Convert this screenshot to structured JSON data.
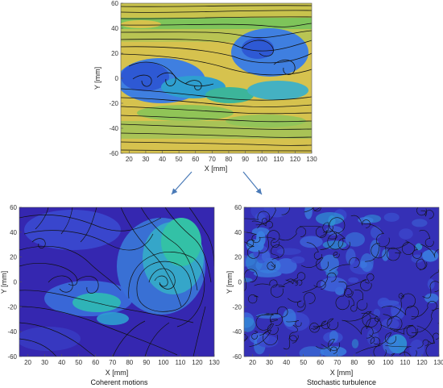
{
  "colors": {
    "arrow": "#4a7ab7",
    "streamline": "#111111",
    "top_field_low": "#3b4fc4",
    "top_field_mid": "#3aa9a0",
    "top_field_high": "#e2c04a",
    "bottom_field_low": "#3b2fb3",
    "bottom_field_high": "#35b79a"
  },
  "chart_data": [
    {
      "type": "heatmap",
      "title": "",
      "caption": "",
      "xlabel": "X [mm]",
      "ylabel": "Y [mm]",
      "xlim": [
        15,
        130
      ],
      "ylim": [
        -60,
        60
      ],
      "xticks": [
        20,
        30,
        40,
        50,
        60,
        70,
        80,
        90,
        100,
        110,
        120,
        130
      ],
      "yticks": [
        -60,
        -40,
        -20,
        0,
        20,
        40,
        60
      ],
      "overlay": "streamlines with arrows",
      "colormap": "parula"
    },
    {
      "type": "heatmap",
      "title": "",
      "caption": "Coherent motions",
      "xlabel": "X [mm]",
      "ylabel": "Y [mm]",
      "xlim": [
        15,
        130
      ],
      "ylim": [
        -60,
        60
      ],
      "xticks": [
        20,
        30,
        40,
        50,
        60,
        70,
        80,
        90,
        100,
        110,
        120,
        130
      ],
      "yticks": [
        -60,
        -40,
        -20,
        0,
        20,
        40,
        60
      ],
      "overlay": "streamlines",
      "colormap": "parula"
    },
    {
      "type": "heatmap",
      "title": "",
      "caption": "Stochastic turbulence",
      "xlabel": "X [mm]",
      "ylabel": "Y [mm]",
      "xlim": [
        15,
        130
      ],
      "ylim": [
        -60,
        60
      ],
      "xticks": [
        20,
        30,
        40,
        50,
        60,
        70,
        80,
        90,
        100,
        110,
        120,
        130
      ],
      "yticks": [
        -60,
        -40,
        -20,
        0,
        20,
        40,
        60
      ],
      "overlay": "streamlines",
      "colormap": "parula"
    }
  ]
}
